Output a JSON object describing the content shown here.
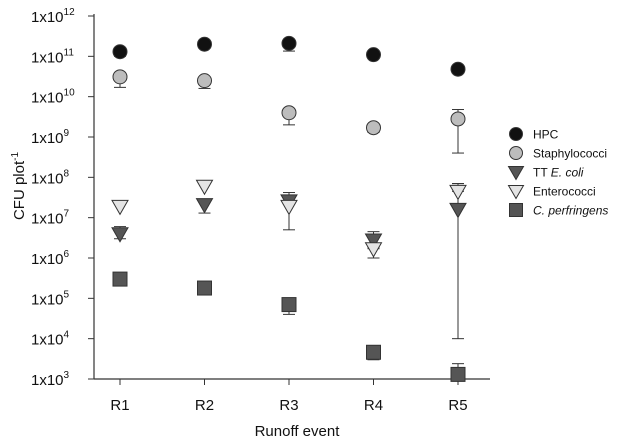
{
  "chart_data": {
    "type": "scatter",
    "title": "",
    "xlabel": "Runoff event",
    "ylabel_text": "CFU plot",
    "ylabel_sup": "-1",
    "yscale": "log",
    "ylim": [
      1000,
      1000000000000
    ],
    "categories": [
      "R1",
      "R2",
      "R3",
      "R4",
      "R5"
    ],
    "ytick_labels": [
      {
        "value": 1000,
        "base": "1x10",
        "exp": "3"
      },
      {
        "value": 10000,
        "base": "1x10",
        "exp": "4"
      },
      {
        "value": 100000,
        "base": "1x10",
        "exp": "5"
      },
      {
        "value": 1000000,
        "base": "1x10",
        "exp": "6"
      },
      {
        "value": 10000000,
        "base": "1x10",
        "exp": "7"
      },
      {
        "value": 100000000,
        "base": "1x10",
        "exp": "8"
      },
      {
        "value": 1000000000,
        "base": "1x10",
        "exp": "9"
      },
      {
        "value": 10000000000,
        "base": "1x10",
        "exp": "10"
      },
      {
        "value": 100000000000,
        "base": "1x10",
        "exp": "11"
      },
      {
        "value": 1000000000000,
        "base": "1x10",
        "exp": "12"
      }
    ],
    "legend_position": "right",
    "grid": false,
    "error_bars": true,
    "series": [
      {
        "name": "HPC",
        "name_prefix": "",
        "name_italic": "",
        "marker": "circle",
        "color": "#111111",
        "values": [
          130000000000,
          200000000000,
          210000000000,
          110000000000,
          48000000000
        ],
        "err_high": [
          130000000000,
          200000000000,
          210000000000,
          110000000000,
          48000000000
        ],
        "err_low": [
          100000000000,
          200000000000,
          135000000000,
          110000000000,
          48000000000
        ]
      },
      {
        "name": "Staphylococci",
        "name_prefix": "",
        "name_italic": "",
        "marker": "circle",
        "color": "#bdbdbd",
        "values": [
          31000000000,
          25000000000,
          4000000000,
          1700000000,
          2800000000
        ],
        "err_high": [
          31000000000,
          25000000000,
          4000000000,
          1700000000,
          4800000000
        ],
        "err_low": [
          17000000000,
          16000000000,
          2000000000,
          1300000000,
          400000000
        ]
      },
      {
        "name": "TT E. coli",
        "name_prefix": "TT ",
        "name_italic": "E. coli",
        "marker": "triangle-down",
        "color": "#555555",
        "values": [
          4000000,
          21000000,
          26000000,
          2800000,
          16000000
        ],
        "err_high": [
          6000000,
          25000000,
          42000000,
          4500000,
          70000000
        ],
        "err_low": [
          3000000,
          13000000,
          26000000,
          1800000,
          10000
        ]
      },
      {
        "name": "Enterococci",
        "name_prefix": "",
        "name_italic": "",
        "marker": "triangle-down",
        "color": "#e4e4e4",
        "values": [
          19000000,
          60000000,
          19000000,
          1700000,
          45000000
        ],
        "err_high": [
          19000000,
          60000000,
          30000000,
          1700000,
          70000000
        ],
        "err_low": [
          19000000,
          60000000,
          5000000,
          1000000,
          45000000
        ]
      },
      {
        "name": "C. perfringens",
        "name_prefix": "",
        "name_italic": "C. perfringens",
        "marker": "square",
        "color": "#555555",
        "values": [
          300000,
          180000,
          70000,
          4600,
          1300
        ],
        "err_high": [
          300000,
          180000,
          70000,
          4600,
          2400
        ],
        "err_low": [
          300000,
          180000,
          40000,
          3000,
          1300
        ]
      }
    ]
  }
}
